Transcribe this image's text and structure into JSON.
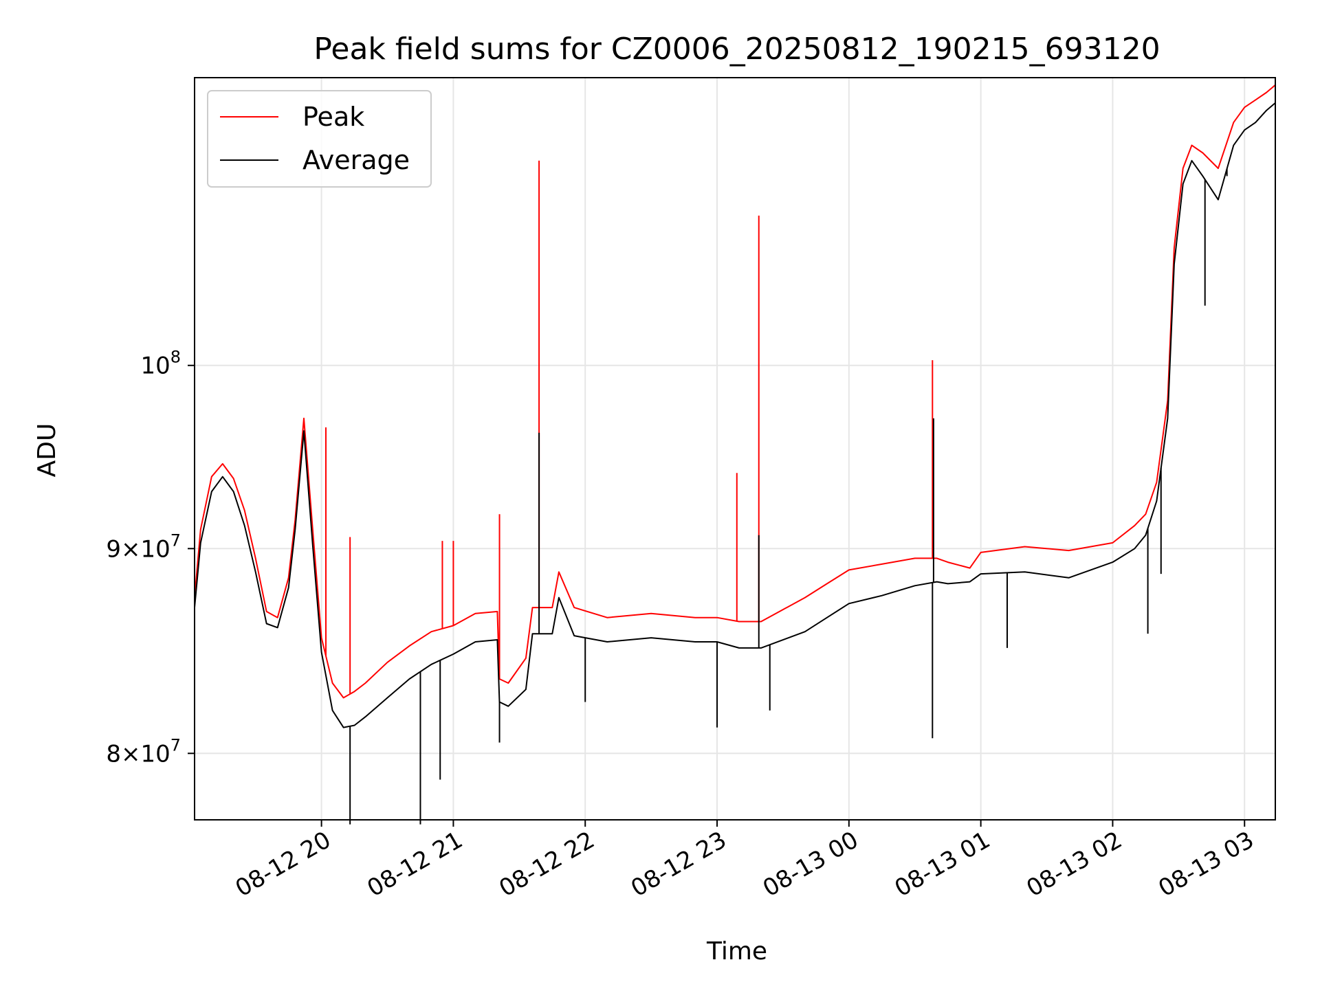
{
  "chart_data": {
    "type": "line",
    "title": "Peak field sums for CZ0006_20250812_190215_693120",
    "xlabel": "Time",
    "ylabel": "ADU",
    "yscale": "log",
    "ylim": [
      77000000,
      118000000
    ],
    "xlim": [
      "2025-08-12T19:02:15",
      "2025-08-13T03:14:00"
    ],
    "grid": true,
    "legend_position": "top-left",
    "x_ticks": [
      {
        "label": "08-12 20",
        "time": "2025-08-12T20:00:00"
      },
      {
        "label": "08-12 21",
        "time": "2025-08-12T21:00:00"
      },
      {
        "label": "08-12 22",
        "time": "2025-08-12T22:00:00"
      },
      {
        "label": "08-12 23",
        "time": "2025-08-12T23:00:00"
      },
      {
        "label": "08-13 00",
        "time": "2025-08-13T00:00:00"
      },
      {
        "label": "08-13 01",
        "time": "2025-08-13T01:00:00"
      },
      {
        "label": "08-13 02",
        "time": "2025-08-13T02:00:00"
      },
      {
        "label": "08-13 03",
        "time": "2025-08-13T03:00:00"
      }
    ],
    "y_ticks": [
      {
        "mantissa": "8",
        "exponent": "7",
        "value": 80000000
      },
      {
        "mantissa": "9",
        "exponent": "7",
        "value": 90000000
      },
      {
        "mantissa": "",
        "exponent": "8",
        "value": 100000000
      }
    ],
    "series": [
      {
        "name": "Peak",
        "color": "#ff0000",
        "x": [
          "2025-08-12T19:02:15",
          "2025-08-12T19:05:00",
          "2025-08-12T19:10:00",
          "2025-08-12T19:15:00",
          "2025-08-12T19:20:00",
          "2025-08-12T19:25:00",
          "2025-08-12T19:30:00",
          "2025-08-12T19:35:00",
          "2025-08-12T19:40:00",
          "2025-08-12T19:45:00",
          "2025-08-12T19:48:00",
          "2025-08-12T19:52:00",
          "2025-08-12T19:56:00",
          "2025-08-12T20:00:00",
          "2025-08-12T20:05:00",
          "2025-08-12T20:10:00",
          "2025-08-12T20:15:00",
          "2025-08-12T20:20:00",
          "2025-08-12T20:30:00",
          "2025-08-12T20:40:00",
          "2025-08-12T20:50:00",
          "2025-08-12T21:00:00",
          "2025-08-12T21:10:00",
          "2025-08-12T21:20:00",
          "2025-08-12T21:21:00",
          "2025-08-12T21:25:00",
          "2025-08-12T21:33:00",
          "2025-08-12T21:36:00",
          "2025-08-12T21:45:00",
          "2025-08-12T21:48:00",
          "2025-08-12T21:55:00",
          "2025-08-12T22:10:00",
          "2025-08-12T22:30:00",
          "2025-08-12T22:50:00",
          "2025-08-12T23:00:00",
          "2025-08-12T23:10:00",
          "2025-08-12T23:20:00",
          "2025-08-12T23:40:00",
          "2025-08-12T23:50:00",
          "2025-08-13T00:00:00",
          "2025-08-13T00:15:00",
          "2025-08-13T00:30:00",
          "2025-08-13T00:40:00",
          "2025-08-13T00:45:00",
          "2025-08-13T00:55:00",
          "2025-08-13T01:00:00",
          "2025-08-13T01:20:00",
          "2025-08-13T01:40:00",
          "2025-08-13T02:00:00",
          "2025-08-13T02:10:00",
          "2025-08-13T02:15:00",
          "2025-08-13T02:20:00",
          "2025-08-13T02:25:00",
          "2025-08-13T02:28:00",
          "2025-08-13T02:32:00",
          "2025-08-13T02:36:00",
          "2025-08-13T02:41:00",
          "2025-08-13T02:48:00",
          "2025-08-13T02:55:00",
          "2025-08-13T03:00:00",
          "2025-08-13T03:05:00",
          "2025-08-13T03:10:00",
          "2025-08-13T03:14:00"
        ],
        "values": [
          87500000,
          91000000,
          93800000,
          94500000,
          93700000,
          92000000,
          89500000,
          86800000,
          86500000,
          88500000,
          91500000,
          97000000,
          91000000,
          85500000,
          83300000,
          82600000,
          82900000,
          83300000,
          84300000,
          85100000,
          85800000,
          86100000,
          86700000,
          86800000,
          83500000,
          83300000,
          84500000,
          87000000,
          87000000,
          88800000,
          87000000,
          86500000,
          86700000,
          86500000,
          86500000,
          86300000,
          86300000,
          87500000,
          88200000,
          88900000,
          89200000,
          89500000,
          89500000,
          89300000,
          89000000,
          89800000,
          90100000,
          89900000,
          90300000,
          91200000,
          91800000,
          93500000,
          98000000,
          107000000,
          112000000,
          113500000,
          113000000,
          112000000,
          115000000,
          116000000,
          116500000,
          117000000,
          117500000
        ],
        "spikes": [
          {
            "x": "2025-08-12T20:02:00",
            "value": 96500000
          },
          {
            "x": "2025-08-12T20:13:00",
            "value": 90600000
          },
          {
            "x": "2025-08-12T20:55:00",
            "value": 90400000
          },
          {
            "x": "2025-08-12T21:00:00",
            "value": 90400000
          },
          {
            "x": "2025-08-12T21:21:00",
            "value": 91800000
          },
          {
            "x": "2025-08-12T21:39:00",
            "value": 112500000
          },
          {
            "x": "2025-08-12T23:09:00",
            "value": 94000000
          },
          {
            "x": "2025-08-12T23:19:00",
            "value": 109000000
          },
          {
            "x": "2025-08-13T00:38:00",
            "value": 100300000
          },
          {
            "x": "2025-08-13T02:25:00",
            "value": 98000000
          }
        ]
      },
      {
        "name": "Average",
        "color": "#000000",
        "x": [
          "2025-08-12T19:02:15",
          "2025-08-12T19:05:00",
          "2025-08-12T19:10:00",
          "2025-08-12T19:15:00",
          "2025-08-12T19:20:00",
          "2025-08-12T19:25:00",
          "2025-08-12T19:30:00",
          "2025-08-12T19:35:00",
          "2025-08-12T19:40:00",
          "2025-08-12T19:45:00",
          "2025-08-12T19:48:00",
          "2025-08-12T19:52:00",
          "2025-08-12T19:56:00",
          "2025-08-12T20:00:00",
          "2025-08-12T20:05:00",
          "2025-08-12T20:10:00",
          "2025-08-12T20:15:00",
          "2025-08-12T20:20:00",
          "2025-08-12T20:30:00",
          "2025-08-12T20:40:00",
          "2025-08-12T20:50:00",
          "2025-08-12T21:00:00",
          "2025-08-12T21:10:00",
          "2025-08-12T21:20:00",
          "2025-08-12T21:21:00",
          "2025-08-12T21:25:00",
          "2025-08-12T21:33:00",
          "2025-08-12T21:36:00",
          "2025-08-12T21:45:00",
          "2025-08-12T21:48:00",
          "2025-08-12T21:55:00",
          "2025-08-12T22:10:00",
          "2025-08-12T22:30:00",
          "2025-08-12T22:50:00",
          "2025-08-12T23:00:00",
          "2025-08-12T23:10:00",
          "2025-08-12T23:20:00",
          "2025-08-12T23:40:00",
          "2025-08-12T23:50:00",
          "2025-08-13T00:00:00",
          "2025-08-13T00:15:00",
          "2025-08-13T00:30:00",
          "2025-08-13T00:40:00",
          "2025-08-13T00:45:00",
          "2025-08-13T00:55:00",
          "2025-08-13T01:00:00",
          "2025-08-13T01:20:00",
          "2025-08-13T01:40:00",
          "2025-08-13T02:00:00",
          "2025-08-13T02:10:00",
          "2025-08-13T02:15:00",
          "2025-08-13T02:20:00",
          "2025-08-13T02:25:00",
          "2025-08-13T02:28:00",
          "2025-08-13T02:32:00",
          "2025-08-13T02:36:00",
          "2025-08-13T02:41:00",
          "2025-08-13T02:48:00",
          "2025-08-13T02:55:00",
          "2025-08-13T03:00:00",
          "2025-08-13T03:05:00",
          "2025-08-13T03:10:00",
          "2025-08-13T03:14:00"
        ],
        "values": [
          87000000,
          90300000,
          93000000,
          93800000,
          93000000,
          91200000,
          88800000,
          86200000,
          86000000,
          88000000,
          91000000,
          96300000,
          90200000,
          84800000,
          82000000,
          81200000,
          81300000,
          81700000,
          82600000,
          83500000,
          84200000,
          84700000,
          85300000,
          85400000,
          82400000,
          82200000,
          83000000,
          85700000,
          85700000,
          87500000,
          85600000,
          85300000,
          85500000,
          85300000,
          85300000,
          85000000,
          85000000,
          85800000,
          86500000,
          87200000,
          87600000,
          88100000,
          88300000,
          88200000,
          88300000,
          88700000,
          88800000,
          88500000,
          89300000,
          90000000,
          90700000,
          92500000,
          97000000,
          106000000,
          111000000,
          112500000,
          111500000,
          110000000,
          113500000,
          114500000,
          115000000,
          115800000,
          116300000
        ],
        "spikes": [
          {
            "x": "2025-08-12T20:13:00",
            "value": 76800000
          },
          {
            "x": "2025-08-12T20:45:00",
            "value": 76800000
          },
          {
            "x": "2025-08-12T20:54:00",
            "value": 78800000
          },
          {
            "x": "2025-08-12T21:21:00",
            "value": 80500000
          },
          {
            "x": "2025-08-12T21:39:00",
            "value": 96200000
          },
          {
            "x": "2025-08-12T22:00:00",
            "value": 82400000
          },
          {
            "x": "2025-08-12T23:00:00",
            "value": 81200000
          },
          {
            "x": "2025-08-12T23:19:00",
            "value": 90700000
          },
          {
            "x": "2025-08-12T23:24:00",
            "value": 82000000
          },
          {
            "x": "2025-08-13T00:38:00",
            "value": 80700000
          },
          {
            "x": "2025-08-13T00:38:30",
            "value": 97000000
          },
          {
            "x": "2025-08-13T01:12:00",
            "value": 85000000
          },
          {
            "x": "2025-08-13T02:16:00",
            "value": 85700000
          },
          {
            "x": "2025-08-13T02:22:00",
            "value": 88700000
          },
          {
            "x": "2025-08-13T02:42:00",
            "value": 103500000
          },
          {
            "x": "2025-08-13T02:52:00",
            "value": 111500000
          }
        ]
      }
    ]
  }
}
